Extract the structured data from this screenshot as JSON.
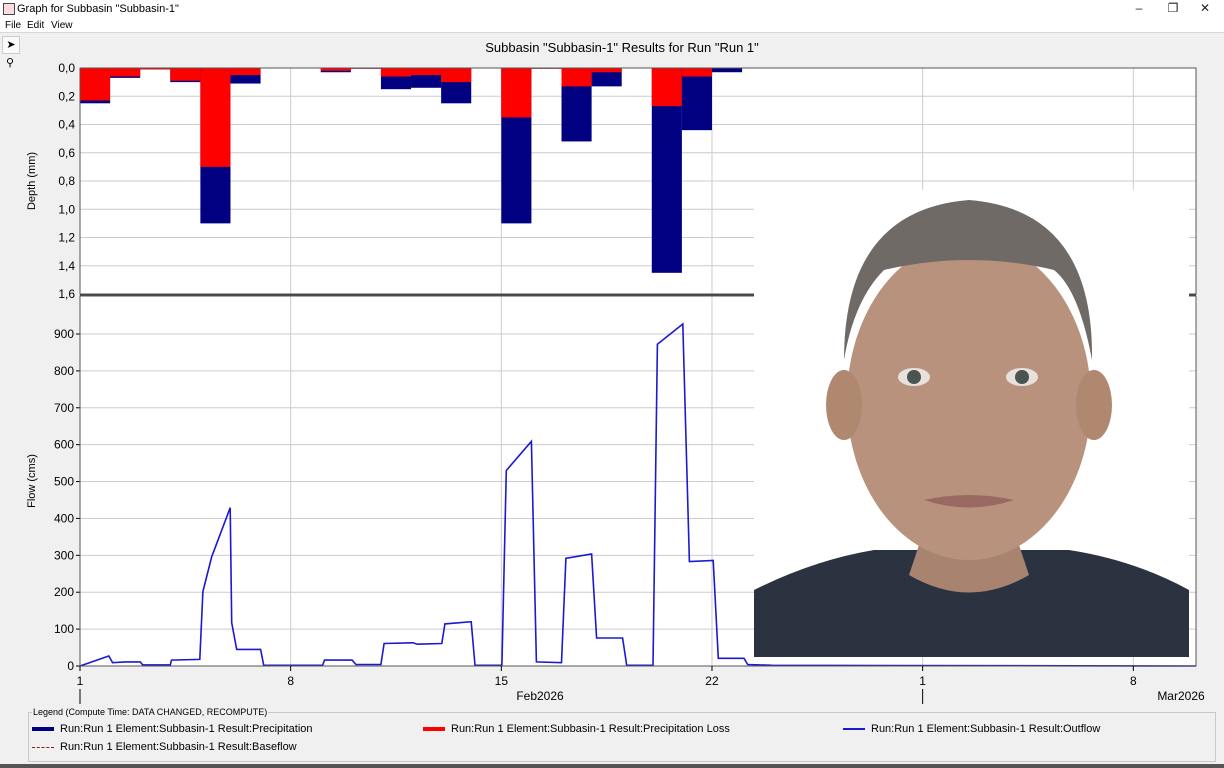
{
  "window": {
    "title": "Graph for Subbasin \"Subbasin-1\"",
    "controls": [
      "–",
      "❐",
      "✕"
    ]
  },
  "menu": [
    "File",
    "Edit",
    "View"
  ],
  "toolbar": [
    {
      "icon": "pointer-arrow-icon",
      "glyph": "➤"
    },
    {
      "icon": "zoom-magnifier-icon",
      "glyph": "⚲"
    }
  ],
  "chart_title": "Subbasin \"Subbasin-1\" Results for Run \"Run 1\"",
  "colors": {
    "precipitation": "#000080",
    "loss": "#ff0000",
    "outflow": "#1a1ad0",
    "baseflow": "#8b1a1a"
  },
  "chart_data": [
    {
      "type": "bar",
      "panel": "top",
      "ylabel": "Depth (mm)",
      "ylim": [
        0,
        1.6
      ],
      "y_inverted": true,
      "yticks": [
        "0,0",
        "0,2",
        "0,4",
        "0,6",
        "0,8",
        "1,0",
        "1,2",
        "1,4",
        "1,6"
      ],
      "grid": true,
      "categories": [
        "2026-02-01",
        "2026-02-02",
        "2026-02-03",
        "2026-02-04",
        "2026-02-05",
        "2026-02-06",
        "2026-02-07",
        "2026-02-08",
        "2026-02-09",
        "2026-02-10",
        "2026-02-11",
        "2026-02-12",
        "2026-02-13",
        "2026-02-14",
        "2026-02-15",
        "2026-02-16",
        "2026-02-17",
        "2026-02-18",
        "2026-02-19",
        "2026-02-20",
        "2026-02-21",
        "2026-02-22"
      ],
      "series": [
        {
          "name": "Run:Run 1 Element:Subbasin-1 Result:Precipitation",
          "values": [
            0.25,
            0.07,
            0.01,
            0.1,
            1.1,
            0.11,
            0,
            0,
            0.03,
            0.005,
            0.15,
            0.14,
            0.25,
            0,
            1.1,
            0.005,
            0.52,
            0.13,
            0,
            1.45,
            0.44,
            0.03
          ]
        },
        {
          "name": "Run:Run 1 Element:Subbasin-1 Result:Precipitation Loss",
          "values": [
            0.23,
            0.06,
            0.01,
            0.09,
            0.7,
            0.05,
            0,
            0,
            0.02,
            0.005,
            0.06,
            0.05,
            0.1,
            0,
            0.35,
            0.005,
            0.13,
            0.03,
            0,
            0.27,
            0.06,
            0
          ]
        }
      ]
    },
    {
      "type": "line",
      "panel": "bottom",
      "ylabel": "Flow (cms)",
      "ylim": [
        0,
        1003
      ],
      "yticks": [
        0,
        100,
        200,
        300,
        400,
        500,
        600,
        700,
        800,
        900
      ],
      "xlim": [
        "2026-02-01 00:00",
        "2026-03-10 02:00"
      ],
      "xticks": [
        "1",
        "8",
        "15",
        "22",
        "1",
        "8"
      ],
      "month_labels": [
        "Feb2026",
        "Mar2026"
      ],
      "grid": true,
      "series": [
        {
          "name": "Run:Run 1 Element:Subbasin-1 Result:Outflow",
          "points": [
            [
              "2026-02-01 00:00",
              0
            ],
            [
              "2026-02-01 23:00",
              27
            ],
            [
              "2026-02-02 02:00",
              9
            ],
            [
              "2026-02-02 12:00",
              11
            ],
            [
              "2026-02-03 00:00",
              11
            ],
            [
              "2026-02-03 02:00",
              3
            ],
            [
              "2026-02-04 00:00",
              3
            ],
            [
              "2026-02-04 01:00",
              16
            ],
            [
              "2026-02-04 23:30",
              18
            ],
            [
              "2026-02-05 02:00",
              202
            ],
            [
              "2026-02-05 09:00",
              296
            ],
            [
              "2026-02-05 23:45",
              429
            ],
            [
              "2026-02-06 01:00",
              117
            ],
            [
              "2026-02-06 05:00",
              45
            ],
            [
              "2026-02-07 00:00",
              45
            ],
            [
              "2026-02-07 02:30",
              2
            ],
            [
              "2026-02-09 01:30",
              2
            ],
            [
              "2026-02-09 03:00",
              16
            ],
            [
              "2026-02-10 01:00",
              16
            ],
            [
              "2026-02-10 04:00",
              4
            ],
            [
              "2026-02-11 00:00",
              4
            ],
            [
              "2026-02-11 02:30",
              61
            ],
            [
              "2026-02-12 01:30",
              63
            ],
            [
              "2026-02-12 05:00",
              59
            ],
            [
              "2026-02-13 00:30",
              61
            ],
            [
              "2026-02-13 03:00",
              114
            ],
            [
              "2026-02-14 00:00",
              120
            ],
            [
              "2026-02-14 03:00",
              2
            ],
            [
              "2026-02-15 00:30",
              2
            ],
            [
              "2026-02-15 04:00",
              530
            ],
            [
              "2026-02-16 00:00",
              609
            ],
            [
              "2026-02-16 04:00",
              11
            ],
            [
              "2026-02-17 00:00",
              9
            ],
            [
              "2026-02-17 03:30",
              292
            ],
            [
              "2026-02-18 00:00",
              304
            ],
            [
              "2026-02-18 04:00",
              76
            ],
            [
              "2026-02-19 00:45",
              76
            ],
            [
              "2026-02-19 04:00",
              2
            ],
            [
              "2026-02-20 01:00",
              2
            ],
            [
              "2026-02-20 04:30",
              872
            ],
            [
              "2026-02-21 00:45",
              927
            ],
            [
              "2026-02-21 06:00",
              283
            ],
            [
              "2026-02-22 01:00",
              286
            ],
            [
              "2026-02-22 05:00",
              21
            ],
            [
              "2026-02-23 01:30",
              21
            ],
            [
              "2026-02-23 04:30",
              4
            ],
            [
              "2026-02-24 00:00",
              2
            ],
            [
              "2026-03-10 02:00",
              0
            ]
          ]
        },
        {
          "name": "Run:Run 1 Element:Subbasin-1 Result:Baseflow",
          "points": [
            [
              "2026-02-01 00:00",
              0
            ],
            [
              "2026-03-10 02:00",
              0
            ]
          ]
        }
      ]
    }
  ],
  "legend": {
    "title": "Legend (Compute Time: DATA CHANGED, RECOMPUTE)",
    "items": [
      {
        "label": "Run:Run 1 Element:Subbasin-1 Result:Precipitation",
        "style": "solid-thick",
        "color": "#000080"
      },
      {
        "label": "Run:Run 1 Element:Subbasin-1 Result:Precipitation Loss",
        "style": "solid-thick",
        "color": "#ff0000"
      },
      {
        "label": "Run:Run 1 Element:Subbasin-1 Result:Outflow",
        "style": "solid",
        "color": "#1a1ad0"
      },
      {
        "label": "Run:Run 1 Element:Subbasin-1 Result:Baseflow",
        "style": "dashed",
        "color": "#8b1a1a"
      }
    ]
  },
  "overlay_photo": {
    "subject": "portrait-photo"
  }
}
